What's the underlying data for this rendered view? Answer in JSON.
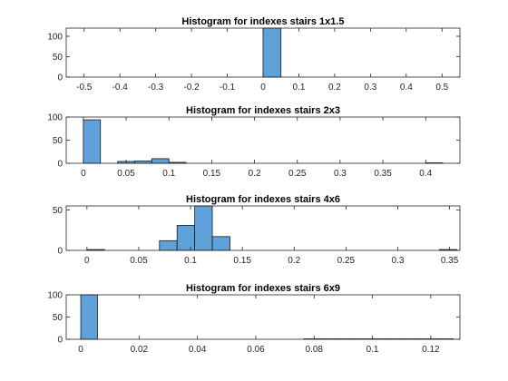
{
  "figure": {
    "background": "#ffffff"
  },
  "colors": {
    "bar_fill": "#5fa2d9",
    "bar_edge": "#1a1a1a",
    "axis": "#262626"
  },
  "chart_data": [
    {
      "type": "bar",
      "title": "Histogram for indexes stairs 1x1.5",
      "xlim": [
        -0.55,
        0.55
      ],
      "ylim": [
        0,
        120
      ],
      "xticks": [
        -0.5,
        -0.4,
        -0.3,
        -0.2,
        -0.1,
        0,
        0.1,
        0.2,
        0.3,
        0.4,
        0.5
      ],
      "xtick_labels": [
        "-0.5",
        "-0.4",
        "-0.3",
        "-0.2",
        "-0.1",
        "0",
        "0.1",
        "0.2",
        "0.3",
        "0.4",
        "0.5"
      ],
      "yticks": [
        0,
        50,
        100
      ],
      "ytick_labels": [
        "0",
        "50",
        "100"
      ],
      "bins": [
        {
          "x0": 0.0,
          "x1": 0.05,
          "count": 120
        }
      ]
    },
    {
      "type": "bar",
      "title": "Histogram for indexes stairs 2x3",
      "xlim": [
        -0.02,
        0.44
      ],
      "ylim": [
        0,
        100
      ],
      "xticks": [
        0,
        0.05,
        0.1,
        0.15,
        0.2,
        0.25,
        0.3,
        0.35,
        0.4
      ],
      "xtick_labels": [
        "0",
        "0.05",
        "0.1",
        "0.15",
        "0.2",
        "0.25",
        "0.3",
        "0.35",
        "0.4"
      ],
      "yticks": [
        0,
        50,
        100
      ],
      "ytick_labels": [
        "0",
        "50",
        "100"
      ],
      "bins": [
        {
          "x0": 0.0,
          "x1": 0.02,
          "count": 94
        },
        {
          "x0": 0.04,
          "x1": 0.06,
          "count": 4
        },
        {
          "x0": 0.06,
          "x1": 0.08,
          "count": 5
        },
        {
          "x0": 0.08,
          "x1": 0.1,
          "count": 10
        },
        {
          "x0": 0.1,
          "x1": 0.12,
          "count": 2
        },
        {
          "x0": 0.4,
          "x1": 0.42,
          "count": 1
        }
      ]
    },
    {
      "type": "bar",
      "title": "Histogram for indexes stairs 4x6",
      "xlim": [
        -0.02,
        0.36
      ],
      "ylim": [
        0,
        55
      ],
      "xticks": [
        0,
        0.05,
        0.1,
        0.15,
        0.2,
        0.25,
        0.3,
        0.35
      ],
      "xtick_labels": [
        "0",
        "0.05",
        "0.1",
        "0.15",
        "0.2",
        "0.25",
        "0.3",
        "0.35"
      ],
      "yticks": [
        0,
        50
      ],
      "ytick_labels": [
        "0",
        "50"
      ],
      "bins": [
        {
          "x0": 0.0,
          "x1": 0.017,
          "count": 1
        },
        {
          "x0": 0.07,
          "x1": 0.087,
          "count": 12
        },
        {
          "x0": 0.087,
          "x1": 0.104,
          "count": 31
        },
        {
          "x0": 0.104,
          "x1": 0.121,
          "count": 55
        },
        {
          "x0": 0.121,
          "x1": 0.138,
          "count": 17
        },
        {
          "x0": 0.34,
          "x1": 0.357,
          "count": 1
        }
      ]
    },
    {
      "type": "bar",
      "title": "Histogram for indexes stairs 6x9",
      "xlim": [
        -0.005,
        0.13
      ],
      "ylim": [
        0,
        100
      ],
      "xticks": [
        0,
        0.02,
        0.04,
        0.06,
        0.08,
        0.1,
        0.12
      ],
      "xtick_labels": [
        "0",
        "0.02",
        "0.04",
        "0.06",
        "0.08",
        "0.1",
        "0.12"
      ],
      "yticks": [
        0,
        50,
        100
      ],
      "ytick_labels": [
        "0",
        "50",
        "100"
      ],
      "bins": [
        {
          "x0": 0.0,
          "x1": 0.0057,
          "count": 100
        },
        {
          "x0": 0.0765,
          "x1": 0.0822,
          "count": 1
        },
        {
          "x0": 0.0822,
          "x1": 0.0879,
          "count": 1
        },
        {
          "x0": 0.0879,
          "x1": 0.0936,
          "count": 1
        },
        {
          "x0": 0.0936,
          "x1": 0.0993,
          "count": 1
        },
        {
          "x0": 0.0993,
          "x1": 0.105,
          "count": 1
        },
        {
          "x0": 0.105,
          "x1": 0.1107,
          "count": 1
        },
        {
          "x0": 0.1107,
          "x1": 0.1164,
          "count": 1
        },
        {
          "x0": 0.1164,
          "x1": 0.1221,
          "count": 1
        },
        {
          "x0": 0.1221,
          "x1": 0.1278,
          "count": 1
        }
      ]
    }
  ]
}
